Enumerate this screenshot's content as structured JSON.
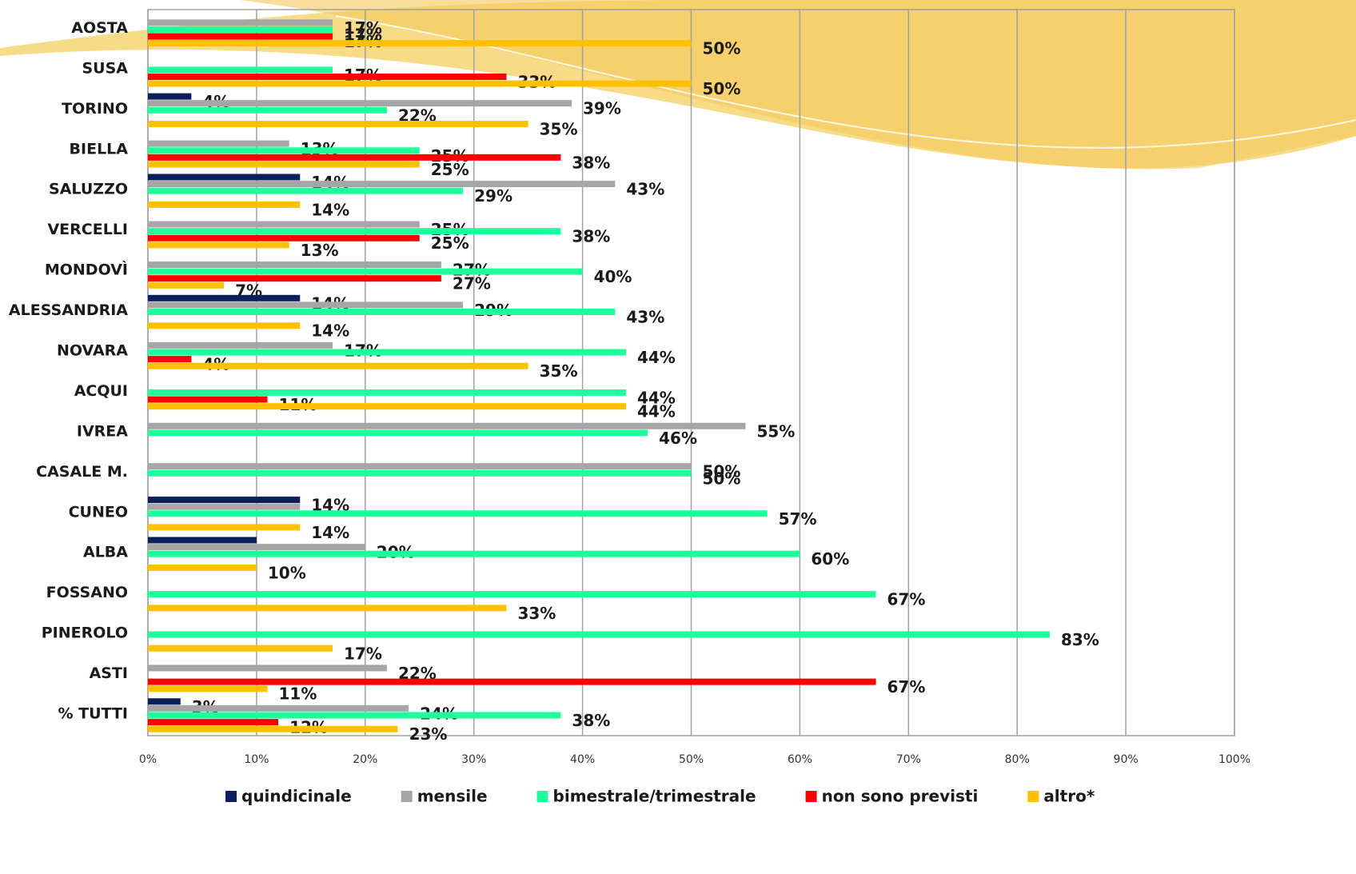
{
  "chart_data": {
    "type": "hbar",
    "categories": [
      "AOSTA",
      "SUSA",
      "TORINO",
      "BIELLA",
      "SALUZZO",
      "VERCELLI",
      "MONDOVÌ",
      "ALESSANDRIA",
      "NOVARA",
      "ACQUI",
      "IVREA",
      "CASALE M.",
      "CUNEO",
      "ALBA",
      "FOSSANO",
      "PINEROLO",
      "ASTI",
      "% TUTTI"
    ],
    "series": [
      {
        "name": "quindicinale",
        "color": "#0b1f5c",
        "values": [
          null,
          null,
          4,
          null,
          14,
          null,
          null,
          14,
          null,
          null,
          null,
          null,
          14,
          10,
          null,
          null,
          null,
          3
        ],
        "value_labels": [
          null,
          null,
          "4%",
          null,
          "14%",
          null,
          null,
          "14%",
          null,
          null,
          null,
          null,
          "14%",
          null,
          null,
          null,
          null,
          "3%"
        ]
      },
      {
        "name": "mensile",
        "color": "#a6a6a6",
        "values": [
          17,
          null,
          39,
          13,
          43,
          25,
          27,
          29,
          17,
          null,
          55,
          50,
          14,
          20,
          null,
          null,
          22,
          24
        ],
        "value_labels": [
          "17%",
          null,
          "39%",
          "13%",
          "43%",
          "25%",
          "27%",
          "29%",
          "17%",
          null,
          "55%",
          "50%",
          null,
          "20%",
          null,
          null,
          "22%",
          "24%"
        ]
      },
      {
        "name": "bimestrale/trimestrale",
        "color": "#1eff9c",
        "values": [
          17,
          17,
          22,
          25,
          29,
          38,
          40,
          43,
          44,
          44,
          46,
          50,
          57,
          60,
          67,
          83,
          null,
          38
        ],
        "value_labels": [
          "17%",
          "17%",
          "22%",
          "25%",
          "29%",
          "38%",
          "40%",
          "43%",
          "44%",
          "44%",
          "46%",
          "50%",
          "57%",
          "60%",
          "67%",
          "83%",
          null,
          "38%"
        ]
      },
      {
        "name": "non sono previsti",
        "color": "#ff0000",
        "values": [
          17,
          33,
          null,
          38,
          null,
          25,
          27,
          null,
          4,
          11,
          null,
          null,
          null,
          null,
          null,
          null,
          67,
          12
        ],
        "value_labels": [
          "17%",
          "33%",
          null,
          "38%",
          null,
          "25%",
          "27%",
          null,
          "4%",
          "11%",
          null,
          null,
          null,
          null,
          null,
          null,
          "67%",
          "12%"
        ]
      },
      {
        "name": "altro*",
        "color": "#ffc000",
        "values": [
          50,
          50,
          35,
          25,
          14,
          13,
          7,
          14,
          35,
          44,
          null,
          null,
          14,
          10,
          33,
          17,
          11,
          23
        ],
        "value_labels": [
          "50%",
          "50%",
          "35%",
          "25%",
          "14%",
          "13%",
          "7%",
          "14%",
          "35%",
          "44%",
          null,
          null,
          "14%",
          "10%",
          "33%",
          "17%",
          "11%",
          "23%"
        ]
      }
    ],
    "xlim": [
      0,
      100
    ],
    "xticks": [
      {
        "value": 0,
        "label": "0%"
      },
      {
        "value": 10,
        "label": "10%"
      },
      {
        "value": 20,
        "label": "20%"
      },
      {
        "value": 30,
        "label": "30%"
      },
      {
        "value": 40,
        "label": "40%"
      },
      {
        "value": 50,
        "label": "50%"
      },
      {
        "value": 60,
        "label": "60%"
      },
      {
        "value": 70,
        "label": "70%"
      },
      {
        "value": 80,
        "label": "80%"
      },
      {
        "value": 90,
        "label": "90%"
      },
      {
        "value": 100,
        "label": "100%"
      }
    ],
    "grid": true,
    "legend": "bottom"
  }
}
